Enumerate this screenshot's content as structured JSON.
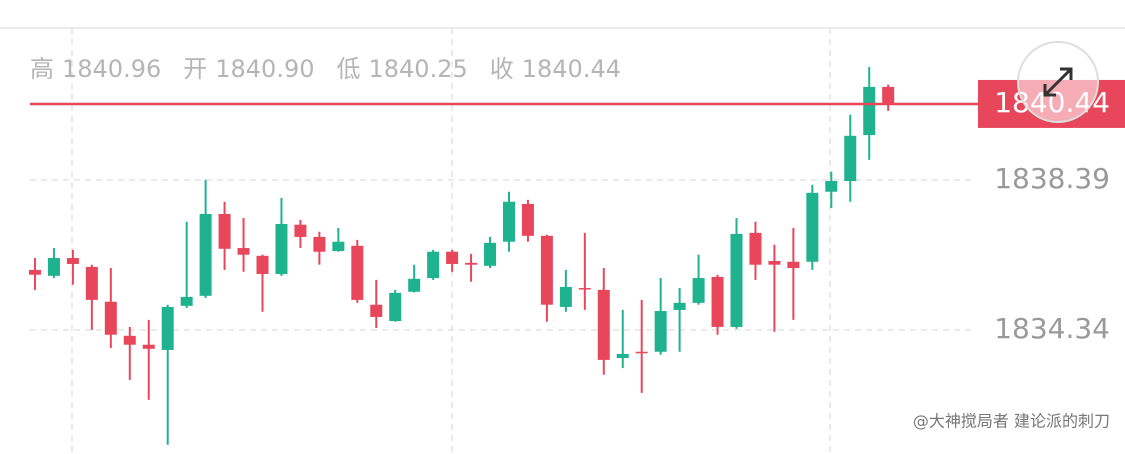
{
  "chart_data": {
    "type": "candlestick",
    "summary": [
      {
        "label": "高",
        "value": "1840.96"
      },
      {
        "label": "开",
        "value": "1840.90"
      },
      {
        "label": "低",
        "value": "1840.25"
      },
      {
        "label": "收",
        "value": "1840.44"
      }
    ],
    "last_price": {
      "value": 1840.44,
      "label": "1840.44"
    },
    "watermark": "@大神搅局者 建论派的刺刀",
    "up_color": "#1fb28f",
    "down_color": "#e8475b",
    "ylim": [
      1830.99,
      1842.49
    ],
    "yticks": [
      1834.34,
      1838.39
    ],
    "grid": true,
    "open": [
      1835.96,
      1835.8,
      1836.28,
      1836.04,
      1835.1,
      1834.18,
      1833.94,
      1833.8,
      1834.99,
      1835.26,
      1837.47,
      1836.55,
      1836.34,
      1835.85,
      1837.18,
      1836.85,
      1836.47,
      1836.61,
      1835.02,
      1834.58,
      1835.37,
      1835.74,
      1836.45,
      1836.15,
      1836.07,
      1836.72,
      1837.74,
      1836.88,
      1834.96,
      1835.47,
      1835.42,
      1833.58,
      1833.75,
      1833.75,
      1834.88,
      1835.07,
      1835.77,
      1834.42,
      1836.96,
      1836.2,
      1836.18,
      1836.18,
      1838.07,
      1838.36,
      1839.6,
      1840.9
    ],
    "high": [
      1836.28,
      1836.55,
      1836.5,
      1836.1,
      1836.01,
      1834.42,
      1834.61,
      1835.02,
      1837.26,
      1838.39,
      1837.8,
      1837.36,
      1836.37,
      1837.9,
      1837.31,
      1836.99,
      1837.09,
      1836.77,
      1835.69,
      1835.42,
      1836.1,
      1836.5,
      1836.5,
      1836.39,
      1836.85,
      1838.07,
      1837.85,
      1836.91,
      1835.96,
      1836.96,
      1836.01,
      1834.88,
      1835.15,
      1835.74,
      1835.47,
      1836.37,
      1835.83,
      1837.36,
      1837.26,
      1836.64,
      1837.09,
      1838.26,
      1838.61,
      1840.15,
      1841.44,
      1840.96
    ],
    "low": [
      1835.42,
      1835.74,
      1835.56,
      1834.34,
      1833.85,
      1832.99,
      1832.45,
      1831.24,
      1834.93,
      1835.2,
      1835.96,
      1835.91,
      1834.83,
      1835.8,
      1836.55,
      1836.1,
      1836.45,
      1835.07,
      1834.39,
      1834.56,
      1835.35,
      1835.69,
      1835.91,
      1835.64,
      1836.01,
      1836.45,
      1836.72,
      1834.56,
      1834.83,
      1834.88,
      1833.13,
      1833.31,
      1832.64,
      1833.67,
      1833.75,
      1835.02,
      1834.21,
      1834.37,
      1835.69,
      1834.29,
      1834.61,
      1835.96,
      1837.63,
      1837.8,
      1838.93,
      1840.25
    ],
    "close": [
      1835.83,
      1836.28,
      1836.12,
      1835.15,
      1834.21,
      1833.94,
      1833.83,
      1834.96,
      1835.23,
      1837.47,
      1836.53,
      1836.37,
      1835.85,
      1837.2,
      1836.85,
      1836.45,
      1836.72,
      1835.15,
      1834.69,
      1835.34,
      1835.72,
      1836.45,
      1836.12,
      1836.1,
      1836.69,
      1837.8,
      1836.88,
      1835.02,
      1835.5,
      1835.45,
      1833.53,
      1833.69,
      1833.72,
      1834.85,
      1835.07,
      1835.74,
      1834.42,
      1836.93,
      1836.1,
      1836.1,
      1836.01,
      1838.04,
      1838.36,
      1839.58,
      1840.9,
      1840.44
    ]
  }
}
